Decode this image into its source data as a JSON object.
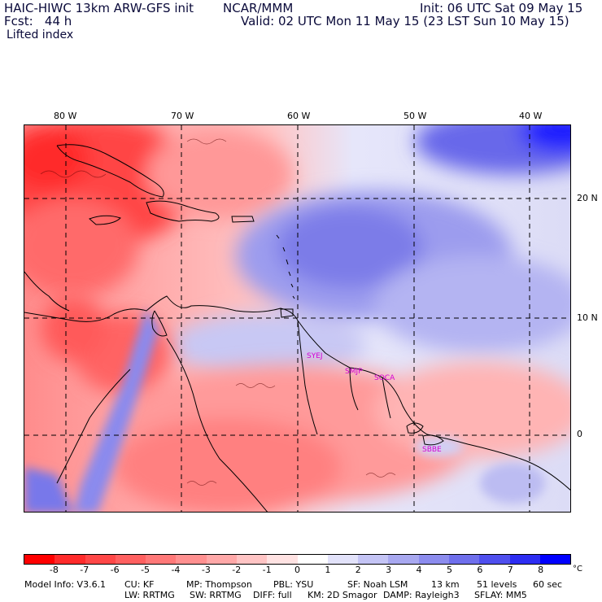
{
  "header": {
    "model": "HAIC-HIWC 13km ARW-GFS init",
    "org": "NCAR/MMM",
    "init": "Init: 06 UTC Sat 09 May 15",
    "fcst": "Fcst:   44 h",
    "valid": "Valid: 02 UTC Mon 11 May 15 (23 LST Sun 10 May 15)",
    "field": "Lifted index"
  },
  "map": {
    "longitude_labels": [
      "80 W",
      "70 W",
      "60 W",
      "50 W",
      "40 W"
    ],
    "latitude_labels": [
      "20 N",
      "10 N",
      "0"
    ],
    "stations": [
      "SYEJ",
      "SMJP",
      "SOCA",
      "SBBE"
    ],
    "colors": {
      "unstable_strong": "#ff2020",
      "unstable_mid": "#ff8c8c",
      "neutral": "#fff4f4",
      "stable_mid": "#8c8cf0",
      "stable_strong": "#1a1aff",
      "coast": "#000000",
      "station_label": "#d400d4"
    }
  },
  "colorbar": {
    "ticks": [
      "-8",
      "-7",
      "-6",
      "-5",
      "-4",
      "-3",
      "-2",
      "-1",
      "0",
      "1",
      "2",
      "3",
      "4",
      "5",
      "6",
      "7",
      "8"
    ],
    "unit": "°C",
    "colors": [
      "#ff0000",
      "#ff2b2b",
      "#ff4747",
      "#ff6060",
      "#ff7878",
      "#ff9090",
      "#ffa8a8",
      "#ffc4c4",
      "#ffe2e2",
      "#ffffff",
      "#e2e2fa",
      "#c4c4f5",
      "#a8a8f0",
      "#8c8cee",
      "#6f6fec",
      "#4f4fee",
      "#2d2df2",
      "#0000ff"
    ]
  },
  "footer": {
    "line1": {
      "model_info": "Model Info: V3.6.1",
      "cu": "CU: KF",
      "mp": "MP: Thompson",
      "pbl": "PBL: YSU",
      "sf": "SF: Noah LSM",
      "res": "13 km",
      "levels": "51 levels",
      "dt": "60 sec"
    },
    "line2": {
      "lw": "LW: RRTMG",
      "sw": "SW: RRTMG",
      "diff": "DIFF: full",
      "km": "KM: 2D Smagor",
      "damp": "DAMP: Rayleigh3",
      "sflay": "SFLAY: MM5"
    }
  }
}
